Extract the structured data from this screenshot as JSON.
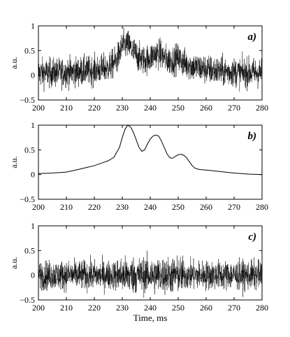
{
  "chart_data": [
    {
      "type": "line",
      "panel_label": "a)",
      "ylabel": "a.u.",
      "xlabel": "",
      "xlim": [
        200,
        280
      ],
      "ylim": [
        -0.5,
        1
      ],
      "xticks": [
        200,
        210,
        220,
        230,
        240,
        250,
        260,
        270,
        280
      ],
      "yticks": [
        -0.5,
        0,
        0.5,
        1
      ],
      "ytick_labels": [
        "−0.5",
        "0",
        "0.5",
        "1"
      ],
      "grid": false,
      "style": "noisy",
      "series": [
        {
          "x": [
            200,
            205,
            210,
            215,
            220,
            225,
            228,
            230,
            232,
            234,
            236,
            238,
            240,
            242,
            244,
            246,
            248,
            250,
            252,
            255,
            260,
            265,
            270,
            275,
            280
          ],
          "y": [
            0.05,
            0.05,
            0.06,
            0.08,
            0.1,
            0.15,
            0.3,
            0.6,
            0.62,
            0.48,
            0.35,
            0.3,
            0.35,
            0.45,
            0.42,
            0.3,
            0.3,
            0.35,
            0.25,
            0.18,
            0.12,
            0.08,
            0.06,
            0.05,
            0.05
          ],
          "noise_amplitude": 0.28
        }
      ]
    },
    {
      "type": "line",
      "panel_label": "b)",
      "ylabel": "a.u.",
      "xlabel": "",
      "xlim": [
        200,
        280
      ],
      "ylim": [
        -0.5,
        1
      ],
      "xticks": [
        200,
        210,
        220,
        230,
        240,
        250,
        260,
        270,
        280
      ],
      "yticks": [
        -0.5,
        0,
        0.5,
        1
      ],
      "ytick_labels": [
        "−0.5",
        "0",
        "0.5",
        "1"
      ],
      "grid": false,
      "style": "smooth",
      "series": [
        {
          "x": [
            200,
            205,
            210,
            214,
            217,
            220,
            223,
            225,
            227,
            229,
            230,
            231,
            232,
            233,
            234,
            235,
            236,
            237,
            238,
            239,
            240,
            241,
            242,
            243,
            244,
            245,
            246,
            247,
            248,
            249,
            250,
            251,
            252,
            253,
            254,
            255,
            256,
            257,
            258,
            260,
            262,
            265,
            270,
            275,
            280
          ],
          "y": [
            0.02,
            0.03,
            0.05,
            0.1,
            0.14,
            0.18,
            0.24,
            0.28,
            0.35,
            0.55,
            0.75,
            0.92,
            1.0,
            0.96,
            0.85,
            0.7,
            0.55,
            0.47,
            0.5,
            0.62,
            0.72,
            0.78,
            0.8,
            0.78,
            0.68,
            0.55,
            0.42,
            0.34,
            0.33,
            0.37,
            0.4,
            0.41,
            0.39,
            0.34,
            0.26,
            0.18,
            0.13,
            0.11,
            0.1,
            0.09,
            0.08,
            0.06,
            0.03,
            0.01,
            0.0
          ]
        }
      ]
    },
    {
      "type": "line",
      "panel_label": "c)",
      "ylabel": "a.u.",
      "xlabel": "Time, ms",
      "xlim": [
        200,
        280
      ],
      "ylim": [
        -0.5,
        1
      ],
      "xticks": [
        200,
        210,
        220,
        230,
        240,
        250,
        260,
        270,
        280
      ],
      "yticks": [
        -0.5,
        0,
        0.5,
        1
      ],
      "ytick_labels": [
        "−0.5",
        "0",
        "0.5",
        "1"
      ],
      "grid": false,
      "style": "noisy",
      "series": [
        {
          "x": [
            200,
            280
          ],
          "y": [
            0,
            0
          ],
          "noise_amplitude": 0.28
        }
      ]
    }
  ]
}
